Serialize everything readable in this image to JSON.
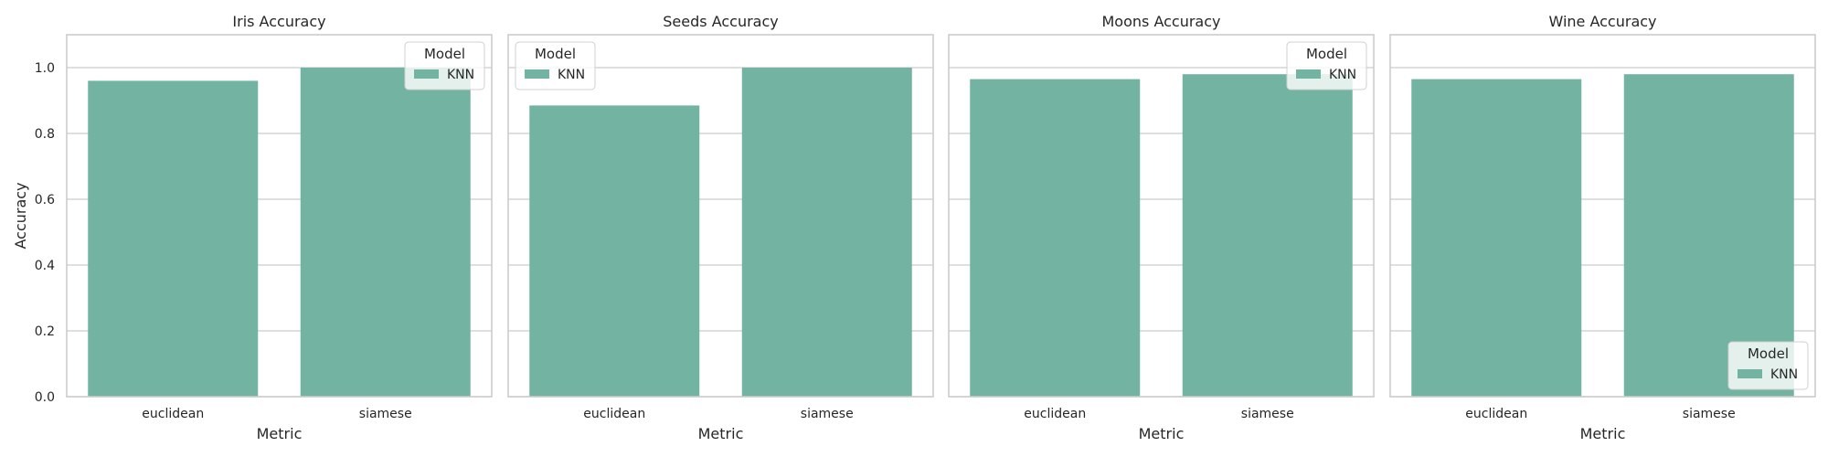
{
  "chart_data": [
    {
      "type": "bar",
      "title": "Iris Accuracy",
      "xlabel": "Metric",
      "ylabel": "Accuracy",
      "categories": [
        "euclidean",
        "siamese"
      ],
      "series": [
        {
          "name": "KNN",
          "values": [
            0.96,
            1.0
          ]
        }
      ],
      "ylim": [
        0,
        1.1
      ],
      "yticks": [
        "0.0",
        "0.2",
        "0.4",
        "0.6",
        "0.8",
        "1.0"
      ],
      "grid": true,
      "legend": {
        "title": "Model",
        "position": "upper-right"
      },
      "color": "#73b3a1"
    },
    {
      "type": "bar",
      "title": "Seeds Accuracy",
      "xlabel": "Metric",
      "ylabel": "",
      "categories": [
        "euclidean",
        "siamese"
      ],
      "series": [
        {
          "name": "KNN",
          "values": [
            0.885,
            1.0
          ]
        }
      ],
      "ylim": [
        0,
        1.1
      ],
      "grid": true,
      "legend": {
        "title": "Model",
        "position": "upper-left"
      },
      "color": "#73b3a1"
    },
    {
      "type": "bar",
      "title": "Moons Accuracy",
      "xlabel": "Metric",
      "ylabel": "",
      "categories": [
        "euclidean",
        "siamese"
      ],
      "series": [
        {
          "name": "KNN",
          "values": [
            0.965,
            0.98
          ]
        }
      ],
      "ylim": [
        0,
        1.1
      ],
      "grid": true,
      "legend": {
        "title": "Model",
        "position": "upper-right"
      },
      "color": "#73b3a1"
    },
    {
      "type": "bar",
      "title": "Wine Accuracy",
      "xlabel": "Metric",
      "ylabel": "",
      "categories": [
        "euclidean",
        "siamese"
      ],
      "series": [
        {
          "name": "KNN",
          "values": [
            0.965,
            0.98
          ]
        }
      ],
      "ylim": [
        0,
        1.1
      ],
      "grid": true,
      "legend": {
        "title": "Model",
        "position": "lower-right"
      },
      "color": "#73b3a1"
    }
  ],
  "colors": {
    "bar": "#73b3a1",
    "grid": "#cccccc",
    "axes": "#cccccc",
    "text": "#262626"
  }
}
